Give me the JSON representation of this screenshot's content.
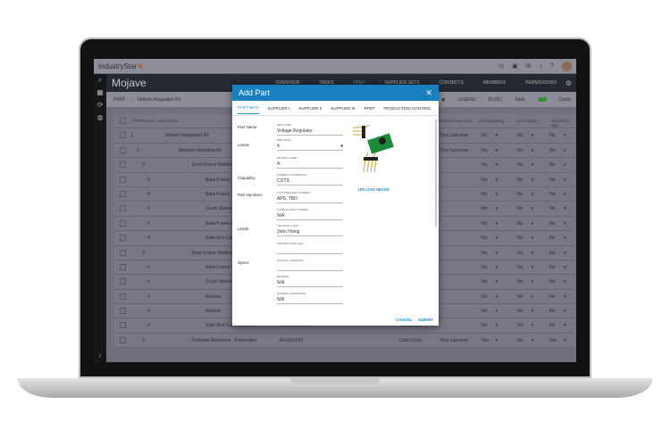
{
  "app": {
    "logo": "IndustryStar",
    "project": "Mojave"
  },
  "nav_tabs": [
    "OVERVIEW",
    "TASKS",
    "PFEP",
    "SUPPLIER SETS",
    "CONTACTS",
    "MEMBERS",
    "PERMISSIONS"
  ],
  "breadcrumb": [
    "PFEP",
    "Vehicle Integration Kit"
  ],
  "toolbar": {
    "legend": "LEGEND",
    "currency": "$ USD",
    "view_left": "Table",
    "view_right": "Cards",
    "toggle_color": "#4caf50"
  },
  "table": {
    "headers": [
      "PFEP Level",
      "Part Name",
      "Commercial Lead",
      "Print/Drawing",
      "CAD Model",
      "Technical Spe"
    ],
    "rows": [
      {
        "level": "1",
        "name": "Vehicle Integration Kit",
        "type": "",
        "pn": "",
        "owner": "",
        "lead": "Tony Lancione",
        "print": "No",
        "cad": "No",
        "spec": "No"
      },
      {
        "level": "2",
        "name": "Weapon Mounting Kit",
        "type": "",
        "pn": "",
        "owner": "",
        "lead": "Tony Lancione",
        "print": "No",
        "cad": "No",
        "spec": "No"
      },
      {
        "level": "3",
        "name": "Front Frame Weldment",
        "type": "",
        "pn": "",
        "owner": "",
        "lead": "",
        "print": "No",
        "cad": "No",
        "spec": "No"
      },
      {
        "level": "4",
        "name": "Base Frame Tube",
        "type": "",
        "pn": "",
        "owner": "",
        "lead": "",
        "print": "No",
        "cad": "No",
        "spec": "No"
      },
      {
        "level": "4",
        "name": "Base Frame Tube",
        "type": "",
        "pn": "",
        "owner": "",
        "lead": "",
        "print": "No",
        "cad": "No",
        "spec": "No"
      },
      {
        "level": "4",
        "name": "Crush Sleeve",
        "type": "",
        "pn": "",
        "owner": "",
        "lead": "",
        "print": "No",
        "cad": "No",
        "spec": "No"
      },
      {
        "level": "4",
        "name": "Base Frame Bracket",
        "type": "",
        "pn": "",
        "owner": "",
        "lead": "",
        "print": "No",
        "cad": "No",
        "spec": "No"
      },
      {
        "level": "4",
        "name": "Tube End Cap",
        "type": "",
        "pn": "",
        "owner": "",
        "lead": "",
        "print": "No",
        "cad": "No",
        "spec": "No"
      },
      {
        "level": "3",
        "name": "Rear Frame Weldment",
        "type": "",
        "pn": "",
        "owner": "",
        "lead": "",
        "print": "No",
        "cad": "No",
        "spec": "No"
      },
      {
        "level": "4",
        "name": "Base Frame Tube",
        "type": "",
        "pn": "",
        "owner": "",
        "lead": "",
        "print": "No",
        "cad": "No",
        "spec": "No"
      },
      {
        "level": "4",
        "name": "Crush Sleeve",
        "type": "",
        "pn": "",
        "owner": "",
        "lead": "",
        "print": "No",
        "cad": "No",
        "spec": "No"
      },
      {
        "level": "4",
        "name": "Bracket",
        "type": "",
        "pn": "",
        "owner": "",
        "lead": "",
        "print": "No",
        "cad": "No",
        "spec": "No"
      },
      {
        "level": "4",
        "name": "Bracket",
        "type": "",
        "pn": "",
        "owner": "",
        "lead": "",
        "print": "No",
        "cad": "No",
        "spec": "No"
      },
      {
        "level": "4",
        "name": "Tube End Cap",
        "type": "Fabrication",
        "pn": "ALK001001-20",
        "owner": "Chris Dutro",
        "lead": "",
        "print": "No",
        "cad": "No",
        "spec": "No"
      },
      {
        "level": "3",
        "name": "Pedestal Weldment",
        "type": "Fabrication",
        "pn": "ALK001003",
        "owner": "Chris Dutro",
        "lead": "Tony Lancione",
        "print": "Yes",
        "cad": "No",
        "spec": "Yes"
      }
    ]
  },
  "modal": {
    "title": "Add Part",
    "tabs": [
      "PART INFO",
      "SUPPLIER I",
      "SUPPLIER II",
      "SUPPLIER III",
      "PFEP",
      "PRODUCTION CONTROL"
    ],
    "sections": {
      "part_name": "Part Name",
      "levels": "Levels",
      "capability": "Capability",
      "part_numbers": "Part Numbers",
      "leads": "Leads",
      "specs": "Specs"
    },
    "fields": [
      {
        "label": "PART NAME",
        "value": "Voltage Regulator"
      },
      {
        "label": "BOM LEVEL",
        "value": "4"
      },
      {
        "label": "REVISION LEVEL",
        "value": "A"
      },
      {
        "label": "CAPABILITY/COMMODITY",
        "value": "COTS"
      },
      {
        "label": "CUSTOMER PART NUMBER",
        "value": "APS, TBD"
      },
      {
        "label": "SUPPLIER PART NUMBER",
        "value": "N/A"
      },
      {
        "label": "TECHNICAL LEAD",
        "value": "John Honig"
      },
      {
        "label": "INDUSTRYSTAR LEAD",
        "value": ""
      },
      {
        "label": "QUANTITY PER BUILD",
        "value": ""
      },
      {
        "label": "MATERIAL",
        "value": "N/A"
      },
      {
        "label": "MATERIAL GRADE/SPEC",
        "value": "N/A"
      }
    ],
    "upload": "UPLOAD IMAGE",
    "cancel": "CANCEL",
    "submit": "SUBMIT",
    "accent": "#1a7fbf"
  }
}
